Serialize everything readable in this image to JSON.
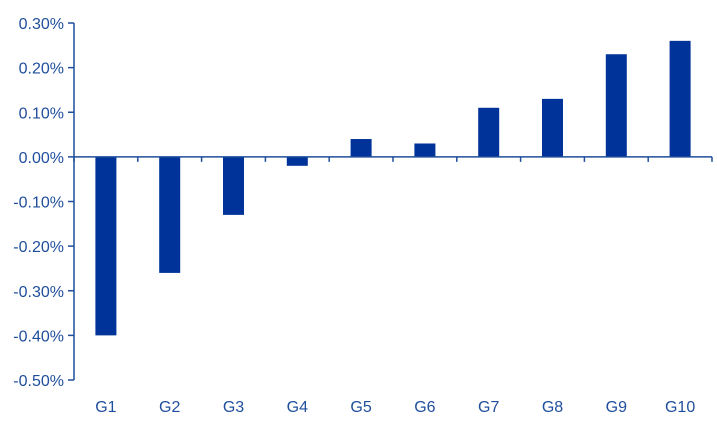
{
  "chart_data": {
    "type": "bar",
    "categories": [
      "G1",
      "G2",
      "G3",
      "G4",
      "G5",
      "G6",
      "G7",
      "G8",
      "G9",
      "G10"
    ],
    "values": [
      -0.4,
      -0.26,
      -0.13,
      -0.02,
      0.04,
      0.03,
      0.11,
      0.13,
      0.23,
      0.26
    ],
    "unit": "%",
    "ylim": [
      -0.5,
      0.3
    ],
    "yticks": [
      "0.30%",
      "0.20%",
      "0.10%",
      "0.00%",
      "-0.10%",
      "-0.20%",
      "-0.30%",
      "-0.40%",
      "-0.50%"
    ],
    "ytick_values": [
      0.3,
      0.2,
      0.1,
      0.0,
      -0.1,
      -0.2,
      -0.3,
      -0.4,
      -0.5
    ],
    "grid": false,
    "legend": "none",
    "colors": {
      "bar": "#003399",
      "axis": "#1f4e9c",
      "text": "#1f4e9c"
    }
  }
}
